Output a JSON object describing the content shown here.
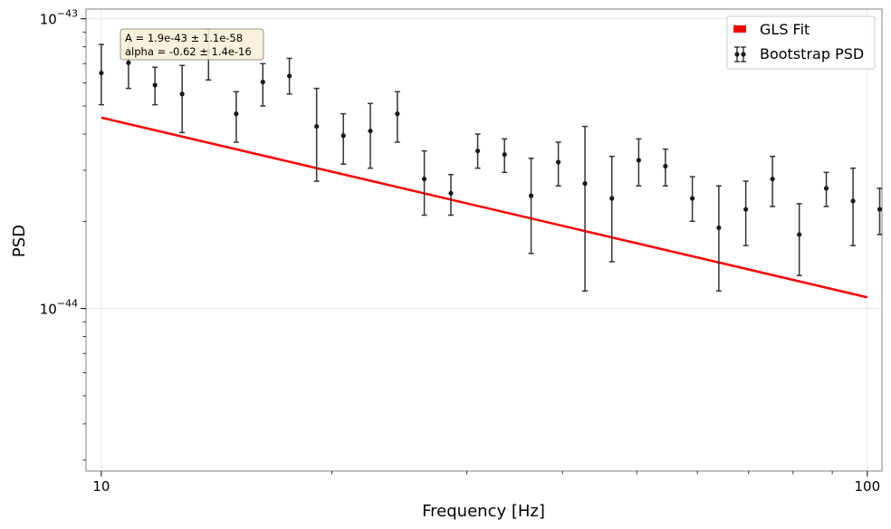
{
  "chart_data": {
    "type": "scatter",
    "xlabel": "Frequency [Hz]",
    "ylabel": "PSD",
    "x_scale": "log",
    "y_scale": "log",
    "xlim": [
      9.55,
      104.5
    ],
    "ylim": [
      2.75e-45,
      1.08e-43
    ],
    "x_ticks": [
      {
        "value": 10,
        "label": "10"
      },
      {
        "value": 100,
        "label": "100"
      }
    ],
    "y_ticks": [
      {
        "value": 1e-44,
        "base": "10",
        "exp": "−44"
      },
      {
        "value": 1e-43,
        "base": "10",
        "exp": "−43"
      }
    ],
    "grid": true,
    "legend": {
      "position": "top-right",
      "fit_label": "GLS Fit",
      "data_label": "Bootstrap PSD"
    },
    "annotation": [
      "A = 1.9e-43 ± 1.1e-58",
      "alpha = -0.62 ± 1.4e-16"
    ],
    "colors": {
      "fit": "#ff0000",
      "points": "#1a1a1a",
      "annotation_bg": "#fbefd8",
      "annotation_border": "#8a8a8a"
    },
    "fit": {
      "A": 1.9e-43,
      "alpha": -0.62
    },
    "series": [
      {
        "name": "Bootstrap PSD",
        "points": [
          {
            "x": 10.0,
            "y": 6.5e-44,
            "lo": 5.05e-44,
            "hi": 8.15e-44
          },
          {
            "x": 10.85,
            "y": 7.05e-44,
            "lo": 5.75e-44,
            "hi": 8.6e-44
          },
          {
            "x": 11.75,
            "y": 5.9e-44,
            "lo": 5.05e-44,
            "hi": 6.8e-44
          },
          {
            "x": 12.75,
            "y": 5.5e-44,
            "lo": 4.05e-44,
            "hi": 6.9e-44
          },
          {
            "x": 13.8,
            "y": 7.7e-44,
            "lo": 6.15e-44,
            "hi": 9.2e-44
          },
          {
            "x": 15.0,
            "y": 4.7e-44,
            "lo": 3.75e-44,
            "hi": 5.6e-44
          },
          {
            "x": 16.25,
            "y": 6.05e-44,
            "lo": 5e-44,
            "hi": 7e-44
          },
          {
            "x": 17.6,
            "y": 6.35e-44,
            "lo": 5.5e-44,
            "hi": 7.3e-44
          },
          {
            "x": 19.1,
            "y": 4.25e-44,
            "lo": 2.75e-44,
            "hi": 5.75e-44
          },
          {
            "x": 20.7,
            "y": 3.95e-44,
            "lo": 3.15e-44,
            "hi": 4.7e-44
          },
          {
            "x": 22.45,
            "y": 4.1e-44,
            "lo": 3.05e-44,
            "hi": 5.1e-44
          },
          {
            "x": 24.35,
            "y": 4.7e-44,
            "lo": 3.75e-44,
            "hi": 5.6e-44
          },
          {
            "x": 26.4,
            "y": 2.8e-44,
            "lo": 2.1e-44,
            "hi": 3.5e-44
          },
          {
            "x": 28.6,
            "y": 2.5e-44,
            "lo": 2.1e-44,
            "hi": 2.9e-44
          },
          {
            "x": 31.0,
            "y": 3.5e-44,
            "lo": 3.05e-44,
            "hi": 4e-44
          },
          {
            "x": 33.6,
            "y": 3.4e-44,
            "lo": 2.95e-44,
            "hi": 3.85e-44
          },
          {
            "x": 36.4,
            "y": 2.45e-44,
            "lo": 1.55e-44,
            "hi": 3.3e-44
          },
          {
            "x": 39.5,
            "y": 3.2e-44,
            "lo": 2.65e-44,
            "hi": 3.75e-44
          },
          {
            "x": 42.8,
            "y": 2.7e-44,
            "lo": 1.15e-44,
            "hi": 4.25e-44
          },
          {
            "x": 46.4,
            "y": 2.4e-44,
            "lo": 1.45e-44,
            "hi": 3.35e-44
          },
          {
            "x": 50.3,
            "y": 3.25e-44,
            "lo": 2.65e-44,
            "hi": 3.85e-44
          },
          {
            "x": 54.5,
            "y": 3.1e-44,
            "lo": 2.65e-44,
            "hi": 3.55e-44
          },
          {
            "x": 59.1,
            "y": 2.4e-44,
            "lo": 2e-44,
            "hi": 2.85e-44
          },
          {
            "x": 64.0,
            "y": 1.9e-44,
            "lo": 1.15e-44,
            "hi": 2.65e-44
          },
          {
            "x": 69.4,
            "y": 2.2e-44,
            "lo": 1.65e-44,
            "hi": 2.75e-44
          },
          {
            "x": 75.2,
            "y": 2.8e-44,
            "lo": 2.25e-44,
            "hi": 3.35e-44
          },
          {
            "x": 81.5,
            "y": 1.8e-44,
            "lo": 1.3e-44,
            "hi": 2.3e-44
          },
          {
            "x": 88.4,
            "y": 2.6e-44,
            "lo": 2.25e-44,
            "hi": 2.95e-44
          },
          {
            "x": 95.8,
            "y": 2.35e-44,
            "lo": 1.65e-44,
            "hi": 3.05e-44
          },
          {
            "x": 103.8,
            "y": 2.2e-44,
            "lo": 1.8e-44,
            "hi": 2.6e-44
          }
        ]
      }
    ]
  }
}
